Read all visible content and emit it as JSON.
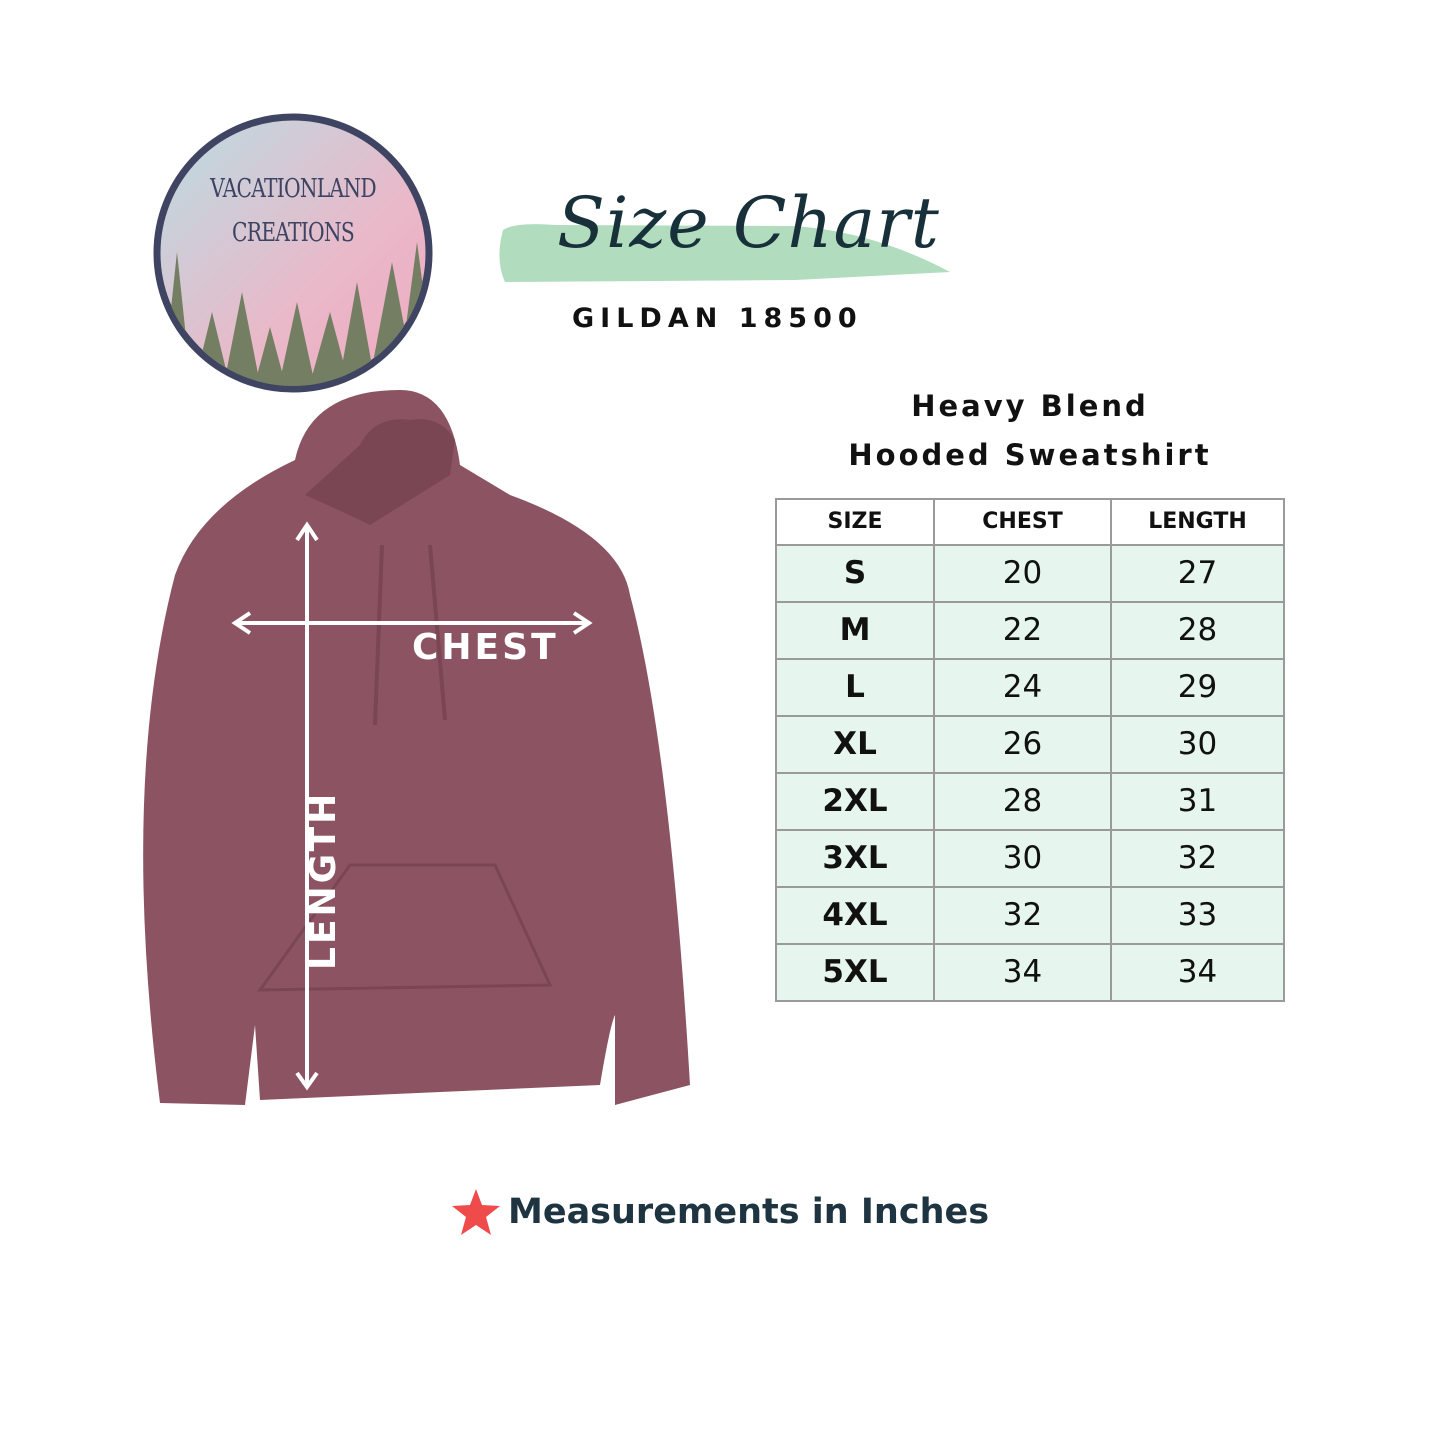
{
  "brand": {
    "logo_line1": "VACATIONLAND",
    "logo_line2": "CREATIONS"
  },
  "header": {
    "title": "Size Chart",
    "subtitle": "GILDAN 18500"
  },
  "product": {
    "line1": "Heavy Blend",
    "line2": "Hooded Sweatshirt"
  },
  "diagram": {
    "chest_label": "CHEST",
    "length_label": "LENGTH",
    "garment_color": "#8c5463"
  },
  "table": {
    "headers": [
      "SIZE",
      "CHEST",
      "LENGTH"
    ],
    "rows": [
      [
        "S",
        "20",
        "27"
      ],
      [
        "M",
        "22",
        "28"
      ],
      [
        "L",
        "24",
        "29"
      ],
      [
        "XL",
        "26",
        "30"
      ],
      [
        "2XL",
        "28",
        "31"
      ],
      [
        "3XL",
        "30",
        "32"
      ],
      [
        "4XL",
        "32",
        "33"
      ],
      [
        "5XL",
        "34",
        "34"
      ]
    ],
    "row_color": "#e6f6ee"
  },
  "footer": {
    "note": "Measurements in Inches",
    "icon": "star-icon",
    "icon_color": "#ef4b4b"
  }
}
